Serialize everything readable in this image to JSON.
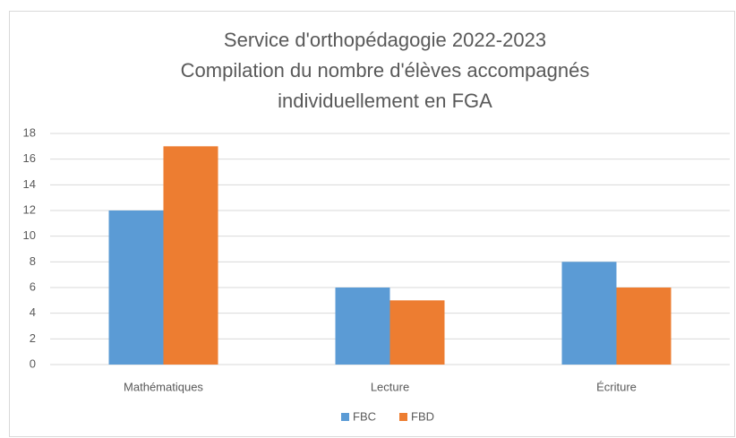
{
  "chart_data": {
    "type": "bar",
    "title": [
      "Service d'orthopédagogie 2022-2023",
      "Compilation du nombre d'élèves accompagnés",
      "individuellement en FGA"
    ],
    "categories": [
      "Mathématiques",
      "Lecture",
      "Écriture"
    ],
    "series": [
      {
        "name": "FBC",
        "color": "#5b9bd5",
        "values": [
          12,
          6,
          8
        ]
      },
      {
        "name": "FBD",
        "color": "#ed7d31",
        "values": [
          17,
          5,
          6
        ]
      }
    ],
    "ylim": [
      0,
      18
    ],
    "yticks": [
      0,
      2,
      4,
      6,
      8,
      10,
      12,
      14,
      16,
      18
    ],
    "grid": true,
    "legend": "bottom"
  }
}
